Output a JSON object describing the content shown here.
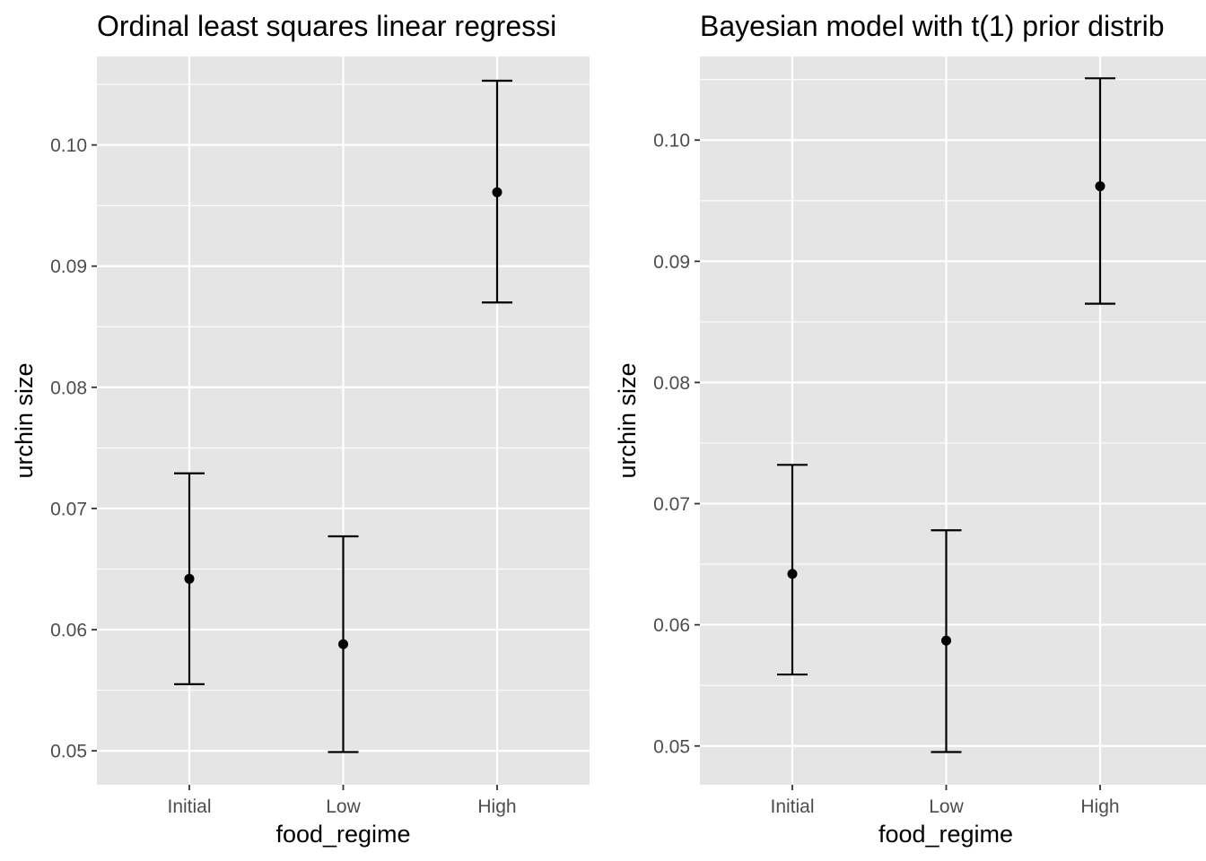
{
  "chart_data": [
    {
      "type": "errorbar",
      "title": "Ordinal least squares linear regressi",
      "xlabel": "food_regime",
      "ylabel": "urchin size",
      "categories": [
        "Initial",
        "Low",
        "High"
      ],
      "values": [
        0.0642,
        0.0588,
        0.0961
      ],
      "lower": [
        0.0555,
        0.0499,
        0.087
      ],
      "upper": [
        0.0729,
        0.0677,
        0.1053
      ],
      "ylim": [
        0.0472,
        0.1073
      ],
      "yticks": [
        0.05,
        0.06,
        0.07,
        0.08,
        0.09,
        0.1
      ],
      "ytick_labels": [
        "0.05",
        "0.06",
        "0.07",
        "0.08",
        "0.09",
        "0.10"
      ],
      "grid": true,
      "background": "#e5e5e5"
    },
    {
      "type": "errorbar",
      "title": "Bayesian model with t(1) prior distrib",
      "xlabel": "food_regime",
      "ylabel": "urchin size",
      "categories": [
        "Initial",
        "Low",
        "High"
      ],
      "values": [
        0.0642,
        0.0587,
        0.0962
      ],
      "lower": [
        0.0559,
        0.0495,
        0.0865
      ],
      "upper": [
        0.0732,
        0.0678,
        0.1051
      ],
      "ylim": [
        0.0468,
        0.1069
      ],
      "yticks": [
        0.05,
        0.06,
        0.07,
        0.08,
        0.09,
        0.1
      ],
      "ytick_labels": [
        "0.05",
        "0.06",
        "0.07",
        "0.08",
        "0.09",
        "0.10"
      ],
      "grid": true,
      "background": "#e5e5e5"
    }
  ]
}
